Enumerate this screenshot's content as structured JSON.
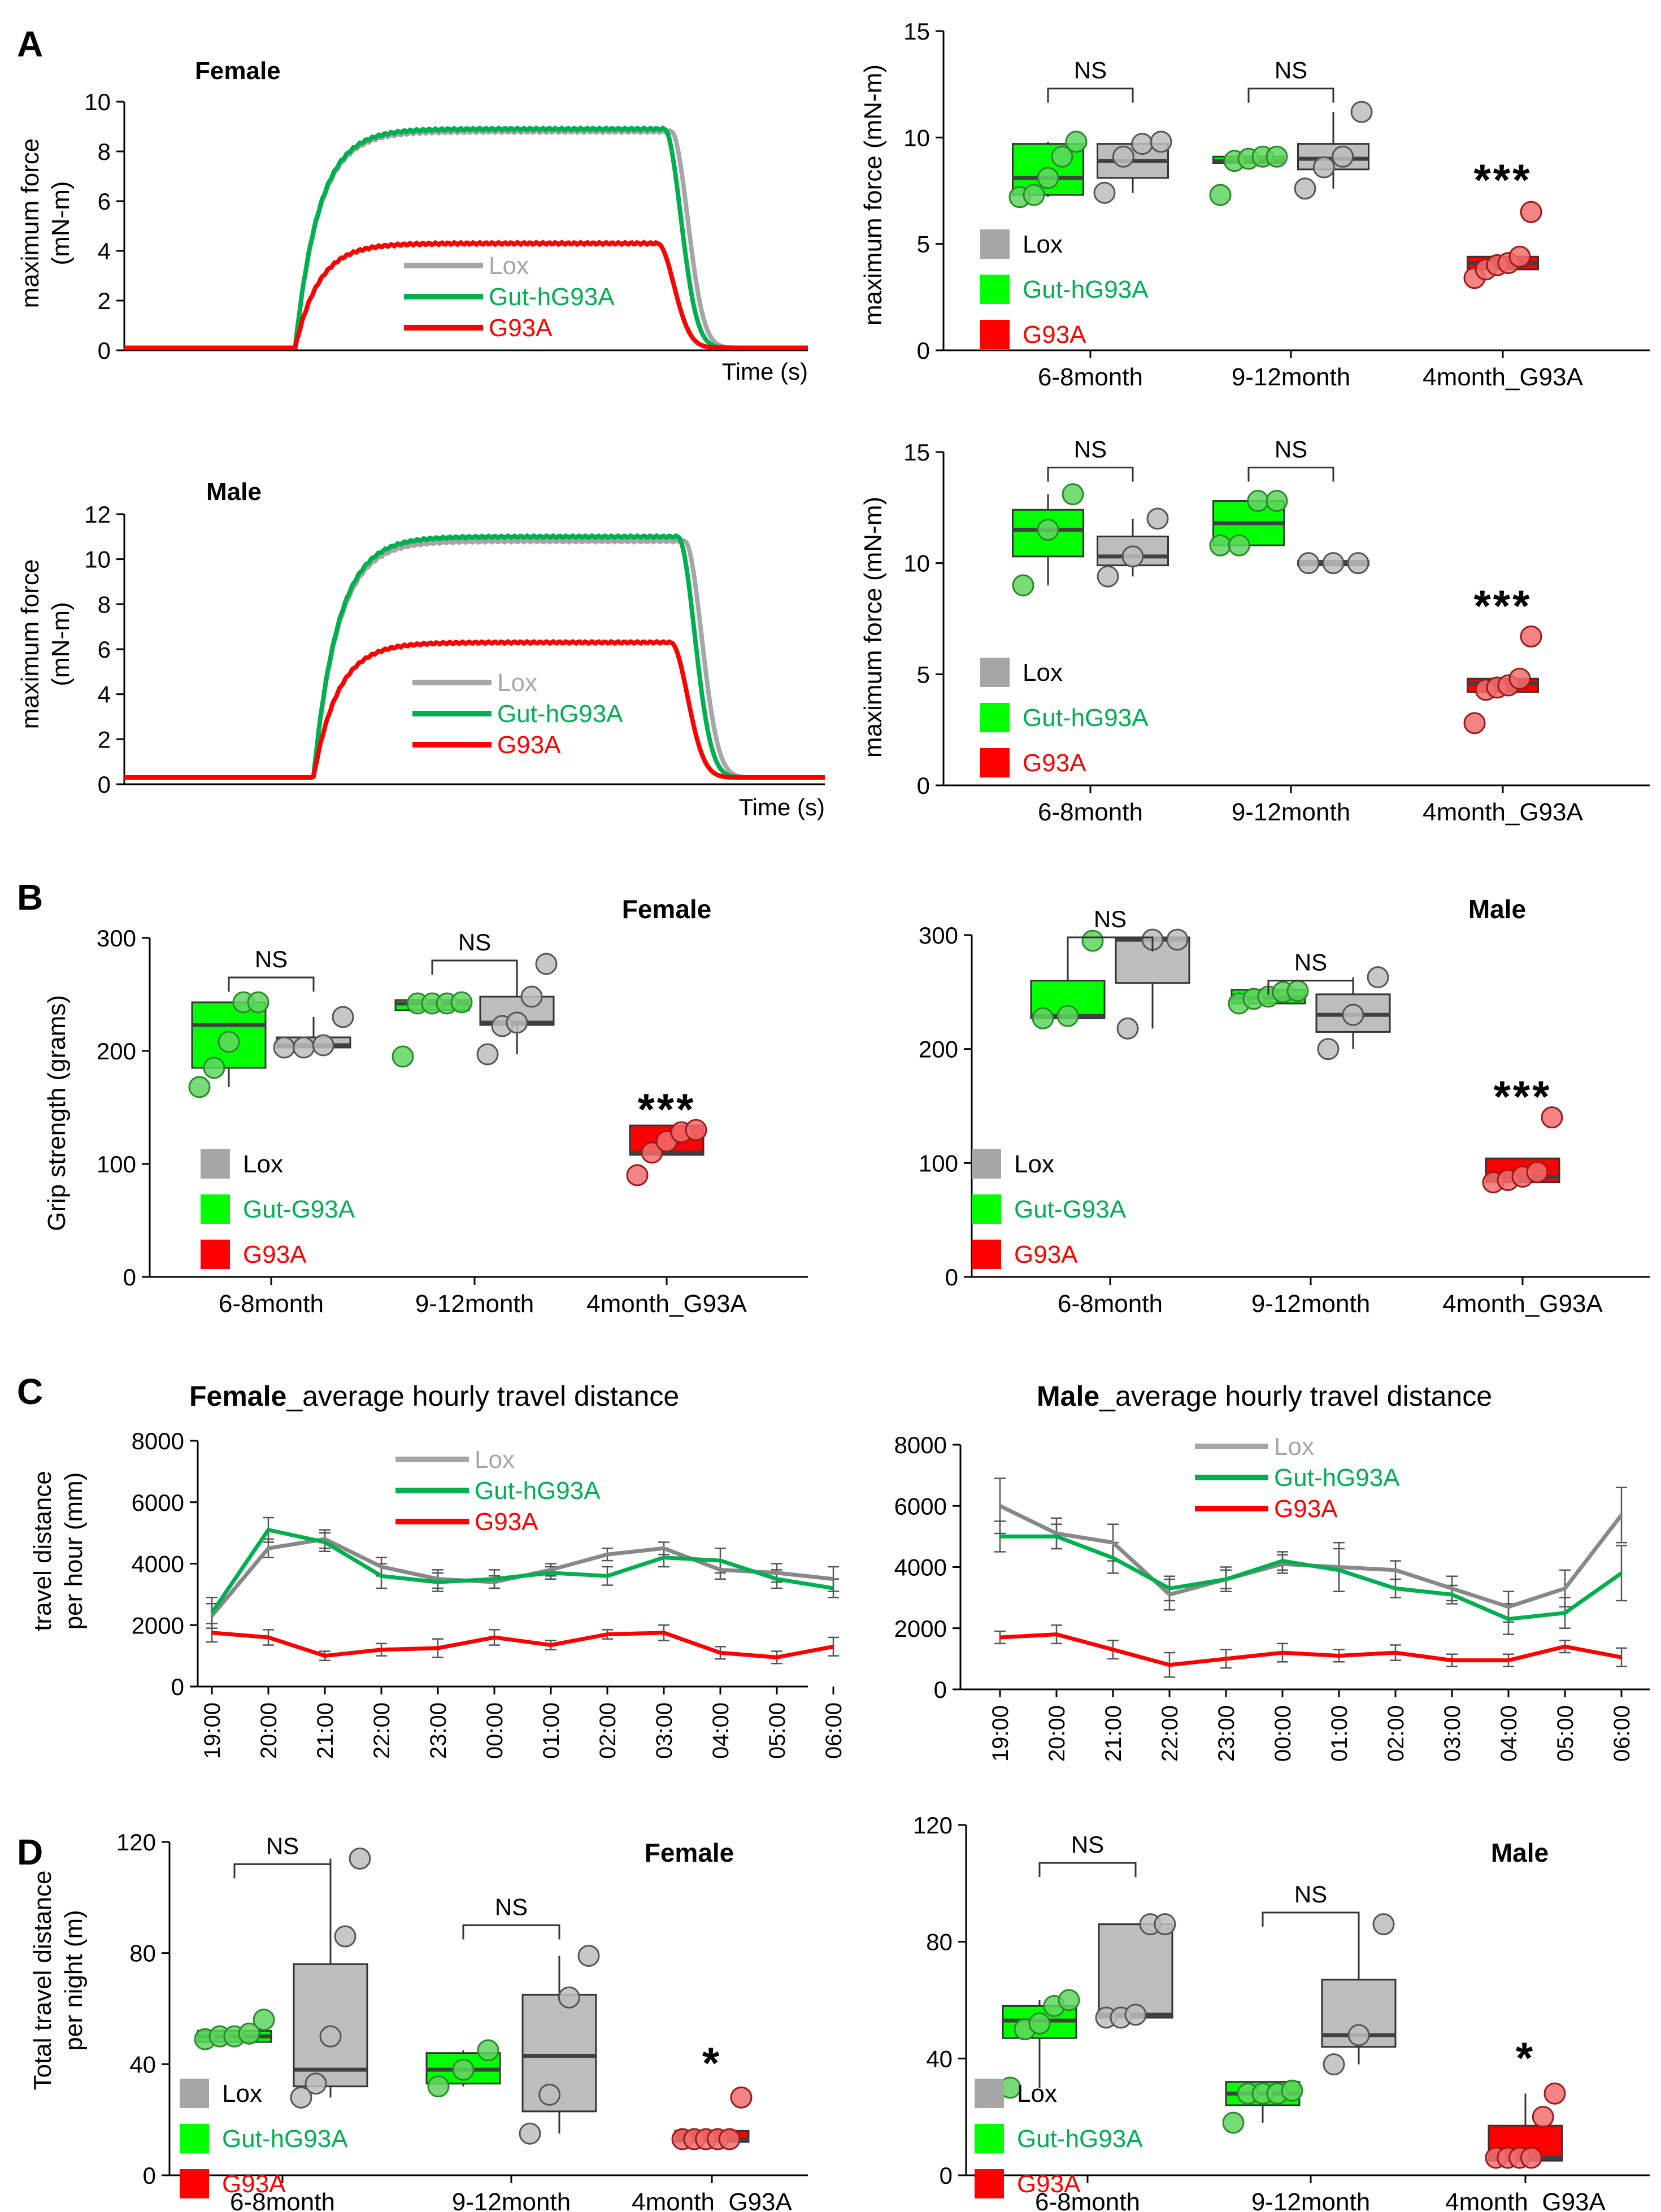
{
  "figure": {
    "panel_labels": [
      "A",
      "B",
      "C",
      "D"
    ],
    "colors": {
      "lox": "#a6a6a6",
      "lox_line": "#888888",
      "gut": "#00b050",
      "gut_fill": "#00ff00",
      "g93a": "#ff0000",
      "dot_green": "#5fd65f",
      "dot_gray": "#bdbdbd",
      "dot_red": "#f26d6d",
      "axis": "#000000",
      "median": "#404040"
    }
  },
  "chart_data": [
    {
      "id": "A_female_trace",
      "type": "line",
      "title": "Female",
      "xlabel": "Time (s)",
      "ylabel": [
        "maximum force",
        "(mN-m)"
      ],
      "ylim": [
        0,
        10
      ],
      "yticks": [
        0,
        2,
        4,
        6,
        8,
        10
      ],
      "legend": [
        "Lox",
        "Gut-hG93A",
        "G93A"
      ],
      "series": [
        {
          "name": "Lox",
          "baseline": 0.1,
          "plateau": 8.8,
          "onset": 0.25,
          "offset": 0.8
        },
        {
          "name": "Gut-hG93A",
          "baseline": 0.1,
          "plateau": 8.9,
          "onset": 0.25,
          "offset": 0.79
        },
        {
          "name": "G93A",
          "baseline": 0.1,
          "plateau": 4.3,
          "onset": 0.25,
          "offset": 0.78
        }
      ]
    },
    {
      "id": "A_male_trace",
      "type": "line",
      "title": "Male",
      "xlabel": "Time (s)",
      "ylabel": [
        "maximum force",
        "(mN-m)"
      ],
      "ylim": [
        0,
        12
      ],
      "yticks": [
        0,
        2,
        4,
        6,
        8,
        10,
        12
      ],
      "legend": [
        "Lox",
        "Gut-hG93A",
        "G93A"
      ],
      "series": [
        {
          "name": "Lox",
          "baseline": 0.3,
          "plateau": 10.8,
          "onset": 0.27,
          "offset": 0.8
        },
        {
          "name": "Gut-hG93A",
          "baseline": 0.3,
          "plateau": 11.0,
          "onset": 0.27,
          "offset": 0.79
        },
        {
          "name": "G93A",
          "baseline": 0.3,
          "plateau": 6.3,
          "onset": 0.27,
          "offset": 0.78
        }
      ]
    },
    {
      "id": "A_female_box",
      "type": "box",
      "ylabel": "maximum force (mN-m)",
      "ylim": [
        0,
        15
      ],
      "yticks": [
        0,
        5,
        10,
        15
      ],
      "categories": [
        "6-8month",
        "9-12month",
        "4month_G93A"
      ],
      "legend": [
        "Lox",
        "Gut-hG93A",
        "G93A"
      ],
      "annotations": {
        "ns": [
          "NS",
          "NS"
        ],
        "sig": "***"
      },
      "groups": [
        {
          "cat": 0,
          "color": "gut",
          "q1": 7.3,
          "med": 8.1,
          "q3": 9.7,
          "lo": 7.2,
          "hi": 9.8,
          "pts": [
            7.2,
            7.3,
            8.1,
            9.1,
            9.8
          ]
        },
        {
          "cat": 0,
          "color": "lox",
          "q1": 8.1,
          "med": 8.9,
          "q3": 9.7,
          "lo": 7.4,
          "hi": 9.8,
          "pts": [
            7.4,
            9.1,
            9.7,
            9.8
          ]
        },
        {
          "cat": 1,
          "color": "gut",
          "q1": 8.8,
          "med": 8.9,
          "q3": 9.1,
          "lo": 8.8,
          "hi": 9.1,
          "pts": [
            7.3,
            8.9,
            9.0,
            9.1,
            9.1
          ]
        },
        {
          "cat": 1,
          "color": "lox",
          "q1": 8.5,
          "med": 9.0,
          "q3": 9.7,
          "lo": 7.6,
          "hi": 11.2,
          "pts": [
            7.6,
            8.6,
            9.1,
            11.2
          ]
        },
        {
          "cat": 2,
          "color": "g93a",
          "q1": 3.8,
          "med": 4.1,
          "q3": 4.4,
          "lo": 3.8,
          "hi": 4.4,
          "pts": [
            3.4,
            3.8,
            4.0,
            4.1,
            4.4,
            6.5
          ]
        }
      ]
    },
    {
      "id": "A_male_box",
      "type": "box",
      "ylabel": "maximum force (mN-m)",
      "ylim": [
        0,
        15
      ],
      "yticks": [
        0,
        5,
        10,
        15
      ],
      "categories": [
        "6-8month",
        "9-12month",
        "4month_G93A"
      ],
      "legend": [
        "Lox",
        "Gut-hG93A",
        "G93A"
      ],
      "annotations": {
        "ns": [
          "NS",
          "NS"
        ],
        "sig": "***"
      },
      "groups": [
        {
          "cat": 0,
          "color": "gut",
          "q1": 10.3,
          "med": 11.5,
          "q3": 12.4,
          "lo": 9.0,
          "hi": 13.1,
          "pts": [
            9.0,
            11.5,
            13.1
          ]
        },
        {
          "cat": 0,
          "color": "lox",
          "q1": 9.9,
          "med": 10.3,
          "q3": 11.2,
          "lo": 9.4,
          "hi": 12.0,
          "pts": [
            9.4,
            10.3,
            12.0
          ]
        },
        {
          "cat": 1,
          "color": "gut",
          "q1": 10.8,
          "med": 11.8,
          "q3": 12.8,
          "lo": 10.8,
          "hi": 12.8,
          "pts": [
            10.8,
            10.8,
            12.8,
            12.8
          ]
        },
        {
          "cat": 1,
          "color": "lox",
          "q1": 9.9,
          "med": 10.0,
          "q3": 10.1,
          "lo": 9.9,
          "hi": 10.1,
          "pts": [
            10.0,
            10.0,
            10.0
          ]
        },
        {
          "cat": 2,
          "color": "g93a",
          "q1": 4.2,
          "med": 4.6,
          "q3": 4.8,
          "lo": 4.2,
          "hi": 4.8,
          "pts": [
            2.8,
            4.3,
            4.4,
            4.5,
            4.8,
            6.7
          ]
        }
      ]
    },
    {
      "id": "B_female",
      "type": "box",
      "title": "Female",
      "ylabel": "Grip strength (grams)",
      "ylim": [
        0,
        300
      ],
      "yticks": [
        0,
        100,
        200,
        300
      ],
      "categories": [
        "6-8month",
        "9-12month",
        "4month_G93A"
      ],
      "legend": [
        "Lox",
        "Gut-G93A",
        "G93A"
      ],
      "annotations": {
        "ns": [
          "NS",
          "NS"
        ],
        "sig": "***"
      },
      "groups": [
        {
          "cat": 0,
          "color": "gut",
          "q1": 185,
          "med": 223,
          "q3": 243,
          "lo": 168,
          "hi": 243,
          "pts": [
            168,
            185,
            208,
            243,
            243
          ]
        },
        {
          "cat": 0,
          "color": "lox",
          "q1": 203,
          "med": 205,
          "q3": 212,
          "lo": 203,
          "hi": 230,
          "pts": [
            203,
            203,
            205,
            230
          ]
        },
        {
          "cat": 1,
          "color": "gut",
          "q1": 236,
          "med": 242,
          "q3": 245,
          "lo": 236,
          "hi": 245,
          "pts": [
            195,
            242,
            242,
            242,
            243
          ]
        },
        {
          "cat": 1,
          "color": "lox",
          "q1": 223,
          "med": 225,
          "q3": 248,
          "lo": 197,
          "hi": 277,
          "pts": [
            197,
            222,
            225,
            248,
            277
          ]
        },
        {
          "cat": 2,
          "color": "g93a",
          "q1": 108,
          "med": 110,
          "q3": 134,
          "lo": 108,
          "hi": 134,
          "pts": [
            90,
            110,
            120,
            128,
            130
          ]
        }
      ]
    },
    {
      "id": "B_male",
      "type": "box",
      "title": "Male",
      "ylim": [
        0,
        300
      ],
      "yticks": [
        0,
        100,
        200,
        300
      ],
      "categories": [
        "6-8month",
        "9-12month",
        "4month_G93A"
      ],
      "legend": [
        "Lox",
        "Gut-G93A",
        "G93A"
      ],
      "annotations": {
        "ns": [
          "NS",
          "NS"
        ],
        "sig": "***"
      },
      "groups": [
        {
          "cat": 0,
          "color": "gut",
          "q1": 227,
          "med": 229,
          "q3": 260,
          "lo": 227,
          "hi": 295,
          "pts": [
            227,
            229,
            295
          ]
        },
        {
          "cat": 0,
          "color": "lox",
          "q1": 258,
          "med": 296,
          "q3": 298,
          "lo": 218,
          "hi": 298,
          "pts": [
            218,
            296,
            296
          ]
        },
        {
          "cat": 1,
          "color": "gut",
          "q1": 240,
          "med": 245,
          "q3": 252,
          "lo": 240,
          "hi": 252,
          "pts": [
            240,
            244,
            246,
            250,
            251
          ]
        },
        {
          "cat": 1,
          "color": "lox",
          "q1": 215,
          "med": 230,
          "q3": 248,
          "lo": 200,
          "hi": 263,
          "pts": [
            200,
            230,
            263
          ]
        },
        {
          "cat": 2,
          "color": "g93a",
          "q1": 83,
          "med": 88,
          "q3": 104,
          "lo": 83,
          "hi": 104,
          "pts": [
            83,
            85,
            88,
            92,
            140
          ]
        }
      ]
    },
    {
      "id": "C_female",
      "type": "line",
      "title": "Female_average hourly travel distance",
      "title_bold": "Female",
      "title_rest": "_average hourly travel distance",
      "ylabel": [
        "travel distance",
        "per hour (mm)"
      ],
      "ylim": [
        0,
        8000
      ],
      "yticks": [
        0,
        2000,
        4000,
        6000,
        8000
      ],
      "categories": [
        "19:00",
        "20:00",
        "21:00",
        "22:00",
        "23:00",
        "00:00",
        "01:00",
        "02:00",
        "03:00",
        "04:00",
        "05:00",
        "06:00"
      ],
      "legend": [
        "Lox",
        "Gut-hG93A",
        "G93A"
      ],
      "series": [
        {
          "name": "Lox",
          "values": [
            2300,
            4500,
            4800,
            3900,
            3500,
            3400,
            3800,
            4300,
            4500,
            3800,
            3700,
            3500
          ],
          "err": [
            400,
            300,
            300,
            300,
            300,
            200,
            200,
            200,
            200,
            300,
            300,
            400
          ]
        },
        {
          "name": "Gut-hG93A",
          "values": [
            2400,
            5100,
            4700,
            3600,
            3400,
            3500,
            3700,
            3600,
            4200,
            4100,
            3500,
            3200
          ],
          "err": [
            500,
            400,
            300,
            400,
            300,
            300,
            200,
            300,
            300,
            400,
            300,
            300
          ]
        },
        {
          "name": "G93A",
          "values": [
            1750,
            1600,
            1000,
            1200,
            1250,
            1600,
            1350,
            1700,
            1750,
            1100,
            950,
            1300
          ],
          "err": [
            300,
            250,
            150,
            200,
            300,
            250,
            150,
            150,
            250,
            200,
            200,
            300
          ]
        }
      ]
    },
    {
      "id": "C_male",
      "type": "line",
      "title": "Male_average hourly travel distance",
      "title_bold": "Male",
      "title_rest": "_average hourly travel distance",
      "ylim": [
        0,
        8000
      ],
      "yticks": [
        0,
        2000,
        4000,
        6000,
        8000
      ],
      "categories": [
        "19:00",
        "20:00",
        "21:00",
        "22:00",
        "23:00",
        "00:00",
        "01:00",
        "02:00",
        "03:00",
        "04:00",
        "05:00",
        "06:00"
      ],
      "legend": [
        "Lox",
        "Gut-hG93A",
        "G93A"
      ],
      "series": [
        {
          "name": "Lox",
          "values": [
            6000,
            5100,
            4800,
            3100,
            3600,
            4100,
            4000,
            3900,
            3300,
            2700,
            3300,
            5700
          ],
          "err": [
            900,
            500,
            600,
            500,
            400,
            300,
            800,
            300,
            400,
            500,
            600,
            900
          ]
        },
        {
          "name": "Gut-hG93A",
          "values": [
            5000,
            5000,
            4300,
            3300,
            3600,
            4200,
            3900,
            3300,
            3100,
            2300,
            2500,
            3800
          ],
          "err": [
            500,
            400,
            500,
            400,
            300,
            300,
            700,
            300,
            300,
            500,
            500,
            900
          ]
        },
        {
          "name": "G93A",
          "values": [
            1700,
            1800,
            1300,
            800,
            1000,
            1200,
            1100,
            1200,
            950,
            950,
            1400,
            1050
          ],
          "err": [
            200,
            300,
            300,
            400,
            300,
            300,
            200,
            250,
            200,
            200,
            200,
            300
          ]
        }
      ]
    },
    {
      "id": "D_female",
      "type": "box",
      "title": "Female",
      "ylabel": [
        "Total travel distance",
        "per night (m)"
      ],
      "ylim": [
        0,
        120
      ],
      "yticks": [
        0,
        40,
        80,
        120
      ],
      "categories": [
        "6-8month",
        "9-12month",
        "4month_G93A"
      ],
      "legend": [
        "Lox",
        "Gut-hG93A",
        "G93A"
      ],
      "annotations": {
        "ns": [
          "NS",
          "NS"
        ],
        "sig": "*"
      },
      "groups": [
        {
          "cat": 0,
          "color": "gut",
          "q1": 48,
          "med": 50,
          "q3": 52,
          "lo": 48,
          "hi": 52,
          "pts": [
            49,
            50,
            50,
            51,
            56
          ]
        },
        {
          "cat": 0,
          "color": "lox",
          "q1": 32,
          "med": 38,
          "q3": 76,
          "lo": 28,
          "hi": 114,
          "pts": [
            28,
            33,
            50,
            86,
            114
          ]
        },
        {
          "cat": 1,
          "color": "gut",
          "q1": 33,
          "med": 38,
          "q3": 44,
          "lo": 32,
          "hi": 45,
          "pts": [
            32,
            38,
            45
          ]
        },
        {
          "cat": 1,
          "color": "lox",
          "q1": 23,
          "med": 43,
          "q3": 65,
          "lo": 15,
          "hi": 79,
          "pts": [
            15,
            29,
            64,
            79
          ]
        },
        {
          "cat": 2,
          "color": "g93a",
          "q1": 12,
          "med": 13,
          "q3": 16,
          "lo": 12,
          "hi": 16,
          "pts": [
            13,
            13,
            13,
            13,
            13,
            28
          ]
        }
      ]
    },
    {
      "id": "D_male",
      "type": "box",
      "title": "Male",
      "ylim": [
        0,
        120
      ],
      "yticks": [
        0,
        40,
        80,
        120
      ],
      "categories": [
        "6-8month",
        "9-12month",
        "4month_G93A"
      ],
      "legend": [
        "Lox",
        "Gut-hG93A",
        "G93A"
      ],
      "annotations": {
        "ns": [
          "NS",
          "NS"
        ],
        "sig": "*"
      },
      "groups": [
        {
          "cat": 0,
          "color": "gut",
          "q1": 47,
          "med": 53,
          "q3": 58,
          "lo": 30,
          "hi": 60,
          "pts": [
            30,
            50,
            52,
            58,
            60
          ]
        },
        {
          "cat": 0,
          "color": "lox",
          "q1": 54,
          "med": 55,
          "q3": 86,
          "lo": 54,
          "hi": 86,
          "pts": [
            54,
            54,
            55,
            86,
            86
          ]
        },
        {
          "cat": 1,
          "color": "gut",
          "q1": 24,
          "med": 28,
          "q3": 32,
          "lo": 18,
          "hi": 32,
          "pts": [
            18,
            28,
            28,
            28,
            29
          ]
        },
        {
          "cat": 1,
          "color": "lox",
          "q1": 44,
          "med": 48,
          "q3": 67,
          "lo": 38,
          "hi": 86,
          "pts": [
            38,
            48,
            86
          ]
        },
        {
          "cat": 2,
          "color": "g93a",
          "q1": 5,
          "med": 6,
          "q3": 17,
          "lo": 5,
          "hi": 28,
          "pts": [
            6,
            6,
            6,
            6,
            20,
            28
          ]
        }
      ]
    }
  ]
}
